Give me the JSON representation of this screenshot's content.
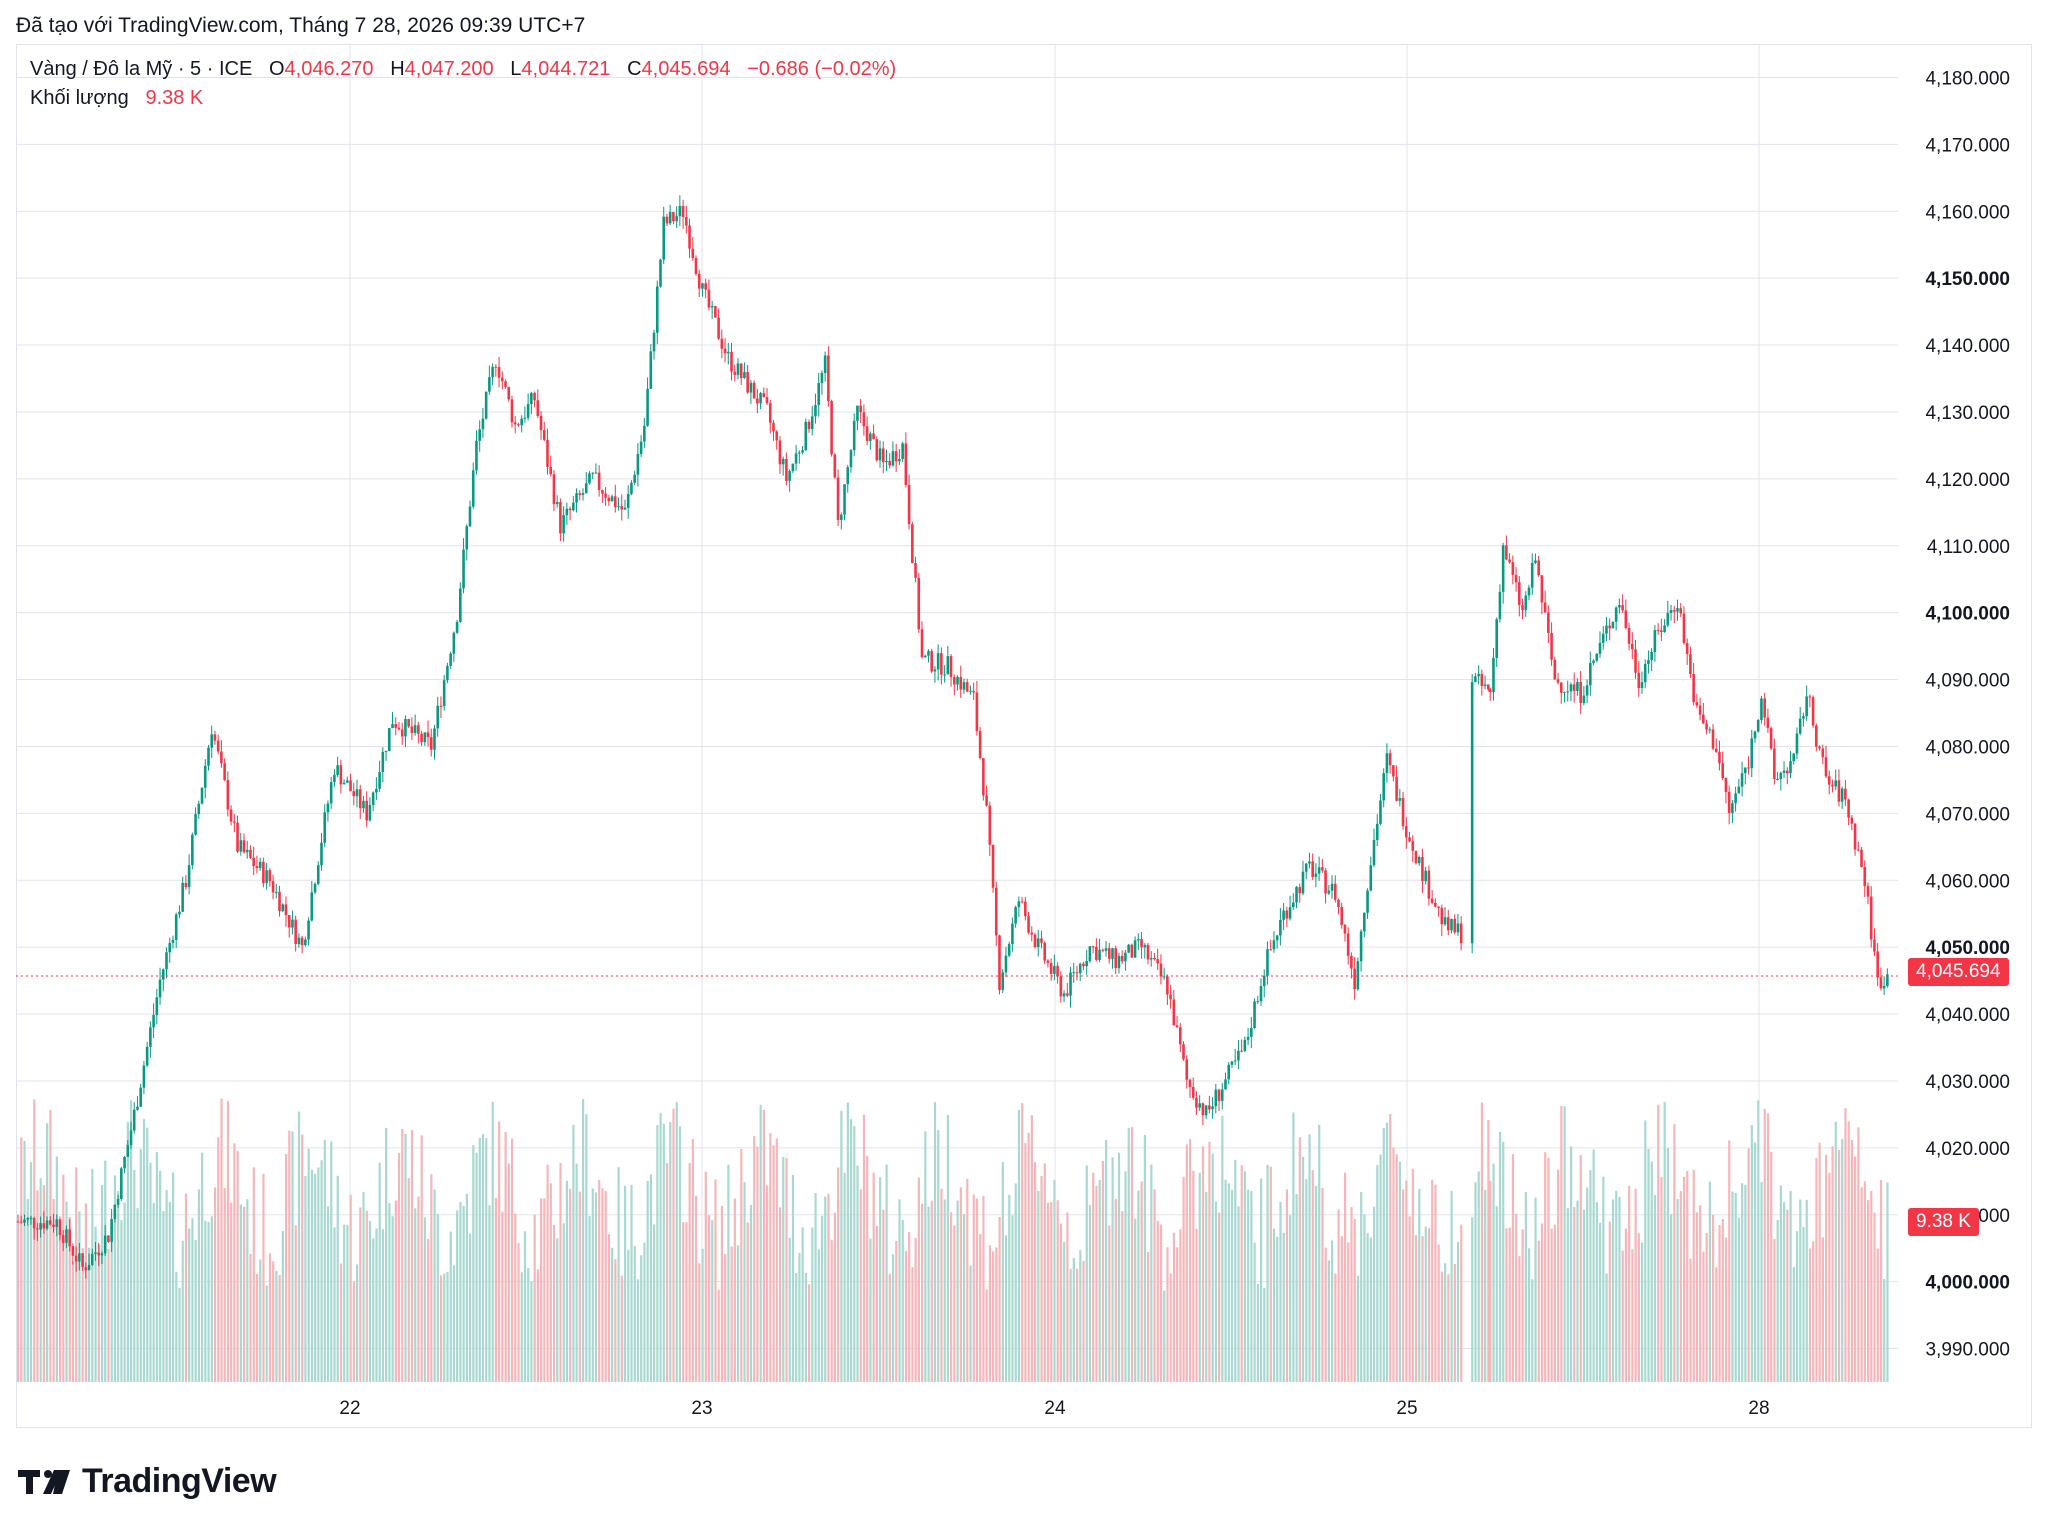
{
  "header": {
    "created": "Đã tạo với TradingView.com, Tháng 7 28, 2026 09:39 UTC+7"
  },
  "legend": {
    "symbol": "Vàng / Đô la Mỹ · 5 · ICE",
    "o_label": "O",
    "o_value": "4,046.270",
    "h_label": "H",
    "h_value": "4,047.200",
    "l_label": "L",
    "l_value": "4,044.721",
    "c_label": "C",
    "c_value": "4,045.694",
    "change": "−0.686 (−0.02%)",
    "volume_label": "Khối lượng",
    "volume_value": "9.38 K"
  },
  "tags": {
    "last_price": "4,045.694",
    "volume": "9.38 K"
  },
  "logo": {
    "text": "TradingView"
  },
  "colors": {
    "up": "#089981",
    "down": "#f23645",
    "grid": "#e0e3eb",
    "vol_up": "#a8d8d0",
    "vol_down": "#f6b6b9"
  },
  "chart_data": {
    "type": "candlestick",
    "symbol": "Vàng / Đô la Mỹ",
    "interval": "5",
    "exchange": "ICE",
    "ylim": [
      3985,
      4185
    ],
    "y_ticks": [
      "4,180.000",
      "4,170.000",
      "4,160.000",
      "4,150.000",
      "4,140.000",
      "4,130.000",
      "4,120.000",
      "4,110.000",
      "4,100.000",
      "4,090.000",
      "4,080.000",
      "4,070.000",
      "4,060.000",
      "4,050.000",
      "4,040.000",
      "4,030.000",
      "4,020.000",
      "4,010.000",
      "4,000.000",
      "3,990.000"
    ],
    "y_tick_values": [
      4180,
      4170,
      4160,
      4150,
      4140,
      4130,
      4120,
      4110,
      4100,
      4090,
      4080,
      4070,
      4060,
      4050,
      4040,
      4030,
      4020,
      4010,
      4000,
      3990
    ],
    "bold_ticks": [
      4150,
      4100,
      4050,
      4000
    ],
    "x_ticks": [
      "22",
      "23",
      "24",
      "25",
      "28"
    ],
    "last_price": 4045.694,
    "grid": true,
    "price_path": [
      {
        "t": 0.0,
        "p": 4009
      },
      {
        "t": 3.0,
        "p": 4009
      },
      {
        "t": 5.0,
        "p": 4002
      },
      {
        "t": 7.0,
        "p": 4007
      },
      {
        "t": 9.0,
        "p": 4025
      },
      {
        "t": 11.0,
        "p": 4045
      },
      {
        "t": 13.0,
        "p": 4060
      },
      {
        "t": 15.0,
        "p": 4083
      },
      {
        "t": 17.0,
        "p": 4065
      },
      {
        "t": 19.5,
        "p": 4060
      },
      {
        "t": 22.0,
        "p": 4050
      },
      {
        "t": 24.5,
        "p": 4077
      },
      {
        "t": 27.0,
        "p": 4070
      },
      {
        "t": 29.0,
        "p": 4084
      },
      {
        "t": 32.0,
        "p": 4080
      },
      {
        "t": 34.0,
        "p": 4100
      },
      {
        "t": 35.5,
        "p": 4125
      },
      {
        "t": 37.0,
        "p": 4138
      },
      {
        "t": 38.5,
        "p": 4128
      },
      {
        "t": 40.0,
        "p": 4132
      },
      {
        "t": 42.0,
        "p": 4113
      },
      {
        "t": 44.5,
        "p": 4120
      },
      {
        "t": 47.0,
        "p": 4115
      },
      {
        "t": 48.5,
        "p": 4128
      },
      {
        "t": 50.0,
        "p": 4158
      },
      {
        "t": 51.5,
        "p": 4160
      },
      {
        "t": 53.0,
        "p": 4148
      },
      {
        "t": 55.0,
        "p": 4138
      },
      {
        "t": 58.0,
        "p": 4130
      },
      {
        "t": 59.5,
        "p": 4120
      },
      {
        "t": 61.0,
        "p": 4127
      },
      {
        "t": 62.5,
        "p": 4137
      },
      {
        "t": 63.5,
        "p": 4113
      },
      {
        "t": 65.0,
        "p": 4130
      },
      {
        "t": 67.0,
        "p": 4122
      },
      {
        "t": 68.5,
        "p": 4125
      },
      {
        "t": 70.0,
        "p": 4093
      },
      {
        "t": 72.0,
        "p": 4092
      },
      {
        "t": 74.0,
        "p": 4087
      },
      {
        "t": 75.0,
        "p": 4070
      },
      {
        "t": 76.0,
        "p": 4045
      },
      {
        "t": 77.5,
        "p": 4057
      },
      {
        "t": 79.0,
        "p": 4050
      },
      {
        "t": 81.0,
        "p": 4043
      },
      {
        "t": 83.0,
        "p": 4050
      },
      {
        "t": 85.0,
        "p": 4048
      },
      {
        "t": 87.0,
        "p": 4050
      },
      {
        "t": 89.0,
        "p": 4044
      },
      {
        "t": 90.5,
        "p": 4030
      },
      {
        "t": 92.0,
        "p": 4025
      },
      {
        "t": 93.5,
        "p": 4030
      },
      {
        "t": 95.0,
        "p": 4035
      },
      {
        "t": 96.5,
        "p": 4047
      },
      {
        "t": 98.0,
        "p": 4055
      },
      {
        "t": 100.0,
        "p": 4062
      },
      {
        "t": 102.0,
        "p": 4058
      },
      {
        "t": 103.5,
        "p": 4045
      },
      {
        "t": 104.5,
        "p": 4060
      },
      {
        "t": 106.0,
        "p": 4078
      },
      {
        "t": 107.5,
        "p": 4068
      },
      {
        "t": 109.0,
        "p": 4060
      },
      {
        "t": 110.5,
        "p": 4053
      },
      {
        "t": 112.0,
        "p": 4052
      },
      {
        "t": 112.5,
        "p": null
      },
      {
        "t": 112.6,
        "p": 4090
      },
      {
        "t": 114.0,
        "p": 4088
      },
      {
        "t": 115.0,
        "p": 4110
      },
      {
        "t": 116.5,
        "p": 4100
      },
      {
        "t": 117.5,
        "p": 4108
      },
      {
        "t": 119.0,
        "p": 4090
      },
      {
        "t": 121.0,
        "p": 4088
      },
      {
        "t": 122.5,
        "p": 4095
      },
      {
        "t": 124.0,
        "p": 4102
      },
      {
        "t": 125.5,
        "p": 4090
      },
      {
        "t": 127.0,
        "p": 4097
      },
      {
        "t": 128.5,
        "p": 4102
      },
      {
        "t": 130.0,
        "p": 4085
      },
      {
        "t": 131.5,
        "p": 4080
      },
      {
        "t": 132.5,
        "p": 4070
      },
      {
        "t": 134.0,
        "p": 4078
      },
      {
        "t": 135.0,
        "p": 4088
      },
      {
        "t": 136.0,
        "p": 4075
      },
      {
        "t": 137.5,
        "p": 4078
      },
      {
        "t": 138.5,
        "p": 4088
      },
      {
        "t": 140.0,
        "p": 4075
      },
      {
        "t": 141.5,
        "p": 4072
      },
      {
        "t": 143.0,
        "p": 4060
      },
      {
        "t": 144.0,
        "p": 4045
      },
      {
        "t": 144.8,
        "p": 4045.694
      }
    ]
  }
}
